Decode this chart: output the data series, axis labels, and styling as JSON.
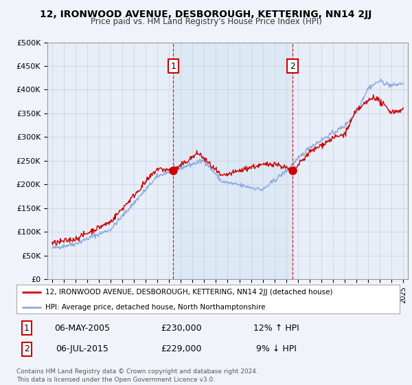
{
  "title": "12, IRONWOOD AVENUE, DESBOROUGH, KETTERING, NN14 2JJ",
  "subtitle": "Price paid vs. HM Land Registry's House Price Index (HPI)",
  "ylabel_ticks": [
    "£0",
    "£50K",
    "£100K",
    "£150K",
    "£200K",
    "£250K",
    "£300K",
    "£350K",
    "£400K",
    "£450K",
    "£500K"
  ],
  "ytick_values": [
    0,
    50000,
    100000,
    150000,
    200000,
    250000,
    300000,
    350000,
    400000,
    450000,
    500000
  ],
  "xlim_start": 1994.6,
  "xlim_end": 2025.4,
  "ylim_min": 0,
  "ylim_max": 500000,
  "red_line_color": "#cc0000",
  "blue_line_color": "#88aadd",
  "shade_color": "#dde8f5",
  "marker1_date": 2005.35,
  "marker1_value": 230000,
  "marker1_label": "1",
  "marker2_date": 2015.55,
  "marker2_value": 229000,
  "marker2_label": "2",
  "legend_label_red": "12, IRONWOOD AVENUE, DESBOROUGH, KETTERING, NN14 2JJ (detached house)",
  "legend_label_blue": "HPI: Average price, detached house, North Northamptonshire",
  "table_rows": [
    {
      "num": "1",
      "date": "06-MAY-2005",
      "price": "£230,000",
      "hpi": "12% ↑ HPI"
    },
    {
      "num": "2",
      "date": "06-JUL-2015",
      "price": "£229,000",
      "hpi": "9% ↓ HPI"
    }
  ],
  "footnote": "Contains HM Land Registry data © Crown copyright and database right 2024.\nThis data is licensed under the Open Government Licence v3.0.",
  "background_color": "#f0f4fa",
  "plot_bg_color": "#e8eef8",
  "grid_color": "#c8d0dc"
}
